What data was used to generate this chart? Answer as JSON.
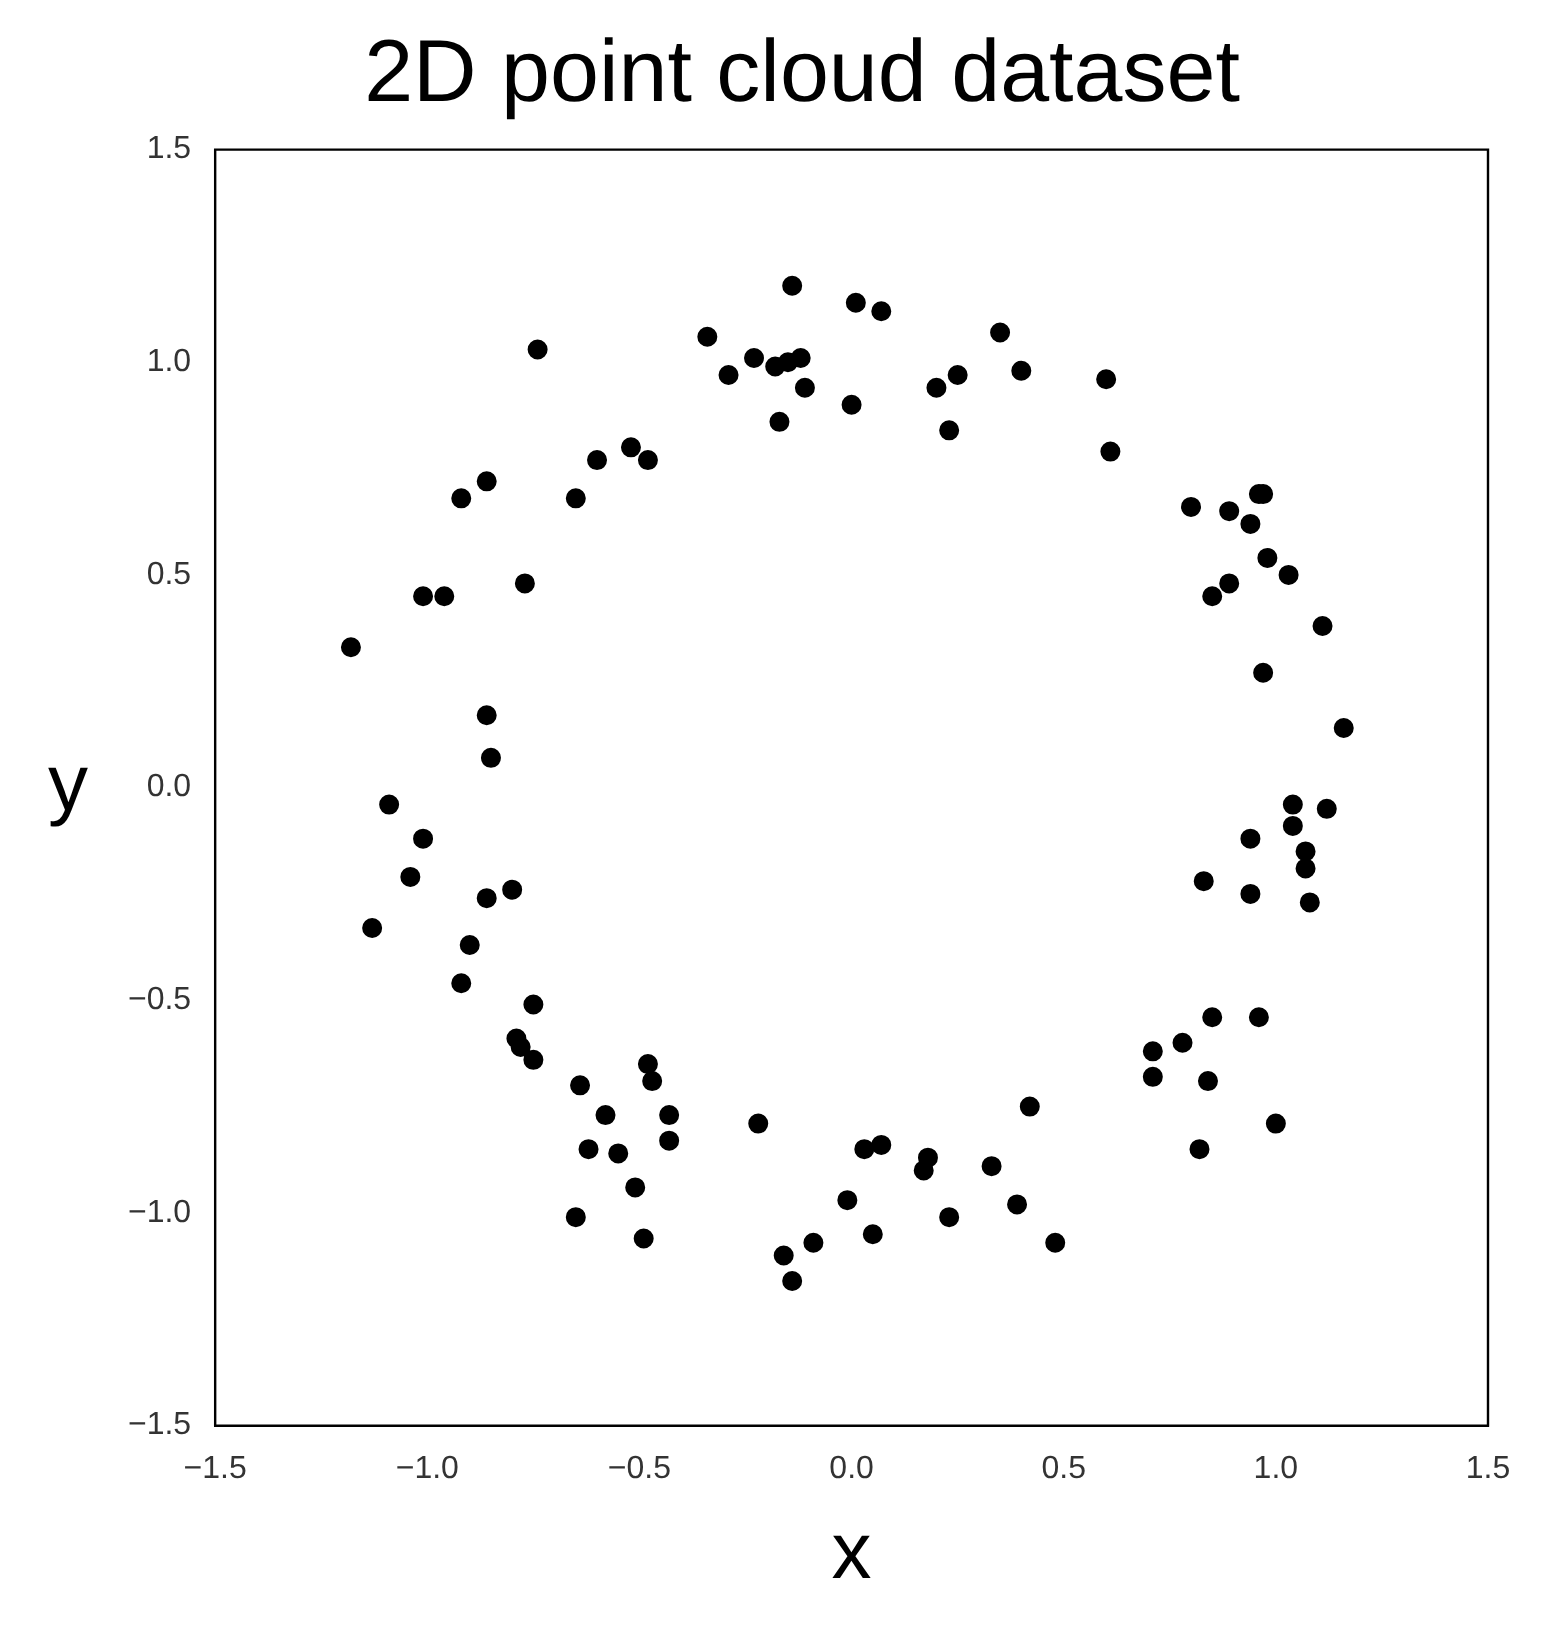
{
  "chart_data": {
    "type": "scatter",
    "title": "2D point cloud dataset",
    "xlabel": "x",
    "ylabel": "y",
    "grid": false,
    "legend": false,
    "marker": "circle",
    "xlim": [
      -1.5,
      1.5
    ],
    "ylim": [
      -1.5,
      1.5
    ],
    "xticks": [
      {
        "value": -1.5,
        "label": "−1.5"
      },
      {
        "value": -1,
        "label": "−1.0"
      },
      {
        "value": -0.5,
        "label": "−0.5"
      },
      {
        "value": 0,
        "label": "0.0"
      },
      {
        "value": 0.5,
        "label": "0.5"
      },
      {
        "value": 1,
        "label": "1.0"
      },
      {
        "value": 1.5,
        "label": "1.5"
      }
    ],
    "yticks": [
      {
        "value": -1.5,
        "label": "−1.5"
      },
      {
        "value": -1,
        "label": "−1.0"
      },
      {
        "value": -0.5,
        "label": "−0.5"
      },
      {
        "value": 0,
        "label": "0.0"
      },
      {
        "value": 0.5,
        "label": "0.5"
      },
      {
        "value": 1,
        "label": "1.0"
      },
      {
        "value": 1.5,
        "label": "1.5"
      }
    ],
    "series": [
      {
        "color": "#000000",
        "x": [
          -0.34,
          -0.29,
          -0.23,
          -0.18,
          -0.15,
          -0.12,
          -0.11,
          -0.17,
          -0.14,
          0.01,
          0.07,
          0.0,
          0.35,
          0.2,
          0.25,
          0.23,
          0.4,
          0.6,
          0.61,
          0.8,
          0.89,
          0.96,
          0.97,
          0.94,
          0.98,
          1.03,
          0.89,
          0.85,
          1.11,
          0.97,
          1.16,
          1.04,
          1.12,
          1.04,
          0.94,
          1.07,
          1.07,
          0.83,
          0.94,
          1.08,
          0.85,
          0.96,
          0.71,
          0.78,
          0.71,
          0.84,
          1.0,
          0.82,
          0.42,
          0.03,
          0.07,
          0.18,
          0.17,
          0.33,
          -0.01,
          0.23,
          0.39,
          0.05,
          0.48,
          -1.09,
          -1.01,
          -1.04,
          -1.13,
          -0.86,
          -0.8,
          -0.9,
          -0.92,
          -0.75,
          -0.79,
          -0.78,
          -0.75,
          -0.64,
          -0.58,
          -0.62,
          -0.55,
          -0.51,
          -0.65,
          -0.49,
          -0.48,
          -0.47,
          -0.43,
          -0.43,
          -0.22,
          -0.09,
          -0.16,
          -0.14,
          -0.74,
          -0.92,
          -0.86,
          -0.6,
          -0.52,
          -0.48,
          -0.65,
          -1.01,
          -0.96,
          -0.77,
          -1.18,
          -0.86,
          -0.85
        ],
        "values": [
          1.06,
          0.97,
          1.01,
          0.99,
          1.0,
          1.01,
          0.94,
          0.86,
          1.18,
          1.14,
          1.12,
          0.9,
          1.07,
          0.94,
          0.97,
          0.84,
          0.98,
          0.96,
          0.79,
          0.66,
          0.65,
          0.69,
          0.69,
          0.62,
          0.54,
          0.5,
          0.48,
          0.45,
          0.38,
          0.27,
          0.14,
          -0.04,
          -0.05,
          -0.09,
          -0.12,
          -0.15,
          -0.19,
          -0.22,
          -0.25,
          -0.27,
          -0.54,
          -0.54,
          -0.62,
          -0.6,
          -0.68,
          -0.69,
          -0.79,
          -0.85,
          -0.75,
          -0.85,
          -0.84,
          -0.87,
          -0.9,
          -0.89,
          -0.97,
          -1.01,
          -0.98,
          -1.05,
          -1.07,
          -0.04,
          -0.12,
          -0.21,
          -0.33,
          -0.26,
          -0.24,
          -0.37,
          -0.46,
          -0.51,
          -0.59,
          -0.61,
          -0.64,
          -0.7,
          -0.77,
          -0.85,
          -0.86,
          -0.94,
          -1.01,
          -1.06,
          -0.65,
          -0.69,
          -0.77,
          -0.83,
          -0.79,
          -1.07,
          -1.1,
          -1.16,
          1.03,
          0.68,
          0.72,
          0.77,
          0.8,
          0.77,
          0.68,
          0.45,
          0.45,
          0.48,
          0.33,
          0.17,
          0.07
        ]
      }
    ]
  }
}
